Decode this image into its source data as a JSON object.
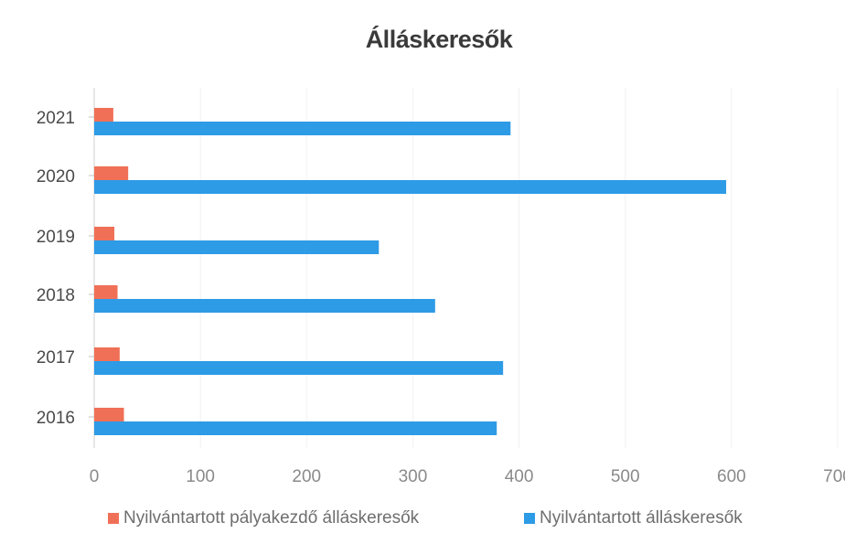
{
  "chart_data": {
    "type": "bar",
    "orientation": "horizontal",
    "title": "Álláskeresők",
    "categories": [
      "2021",
      "2020",
      "2019",
      "2018",
      "2017",
      "2016"
    ],
    "series": [
      {
        "name": "Nyilvántartott pályakezdő álláskeresők",
        "color": "#f07057",
        "values": [
          18,
          32,
          19,
          22,
          24,
          28
        ]
      },
      {
        "name": "Nyilvántartott álláskeresők",
        "color": "#2e9be6",
        "values": [
          392,
          595,
          268,
          321,
          385,
          379
        ]
      }
    ],
    "xlim": [
      0,
      700
    ],
    "x_ticks": [
      "0",
      "100",
      "200",
      "300",
      "400",
      "500",
      "600",
      "700"
    ],
    "grid": true,
    "legend_position": "bottom"
  }
}
